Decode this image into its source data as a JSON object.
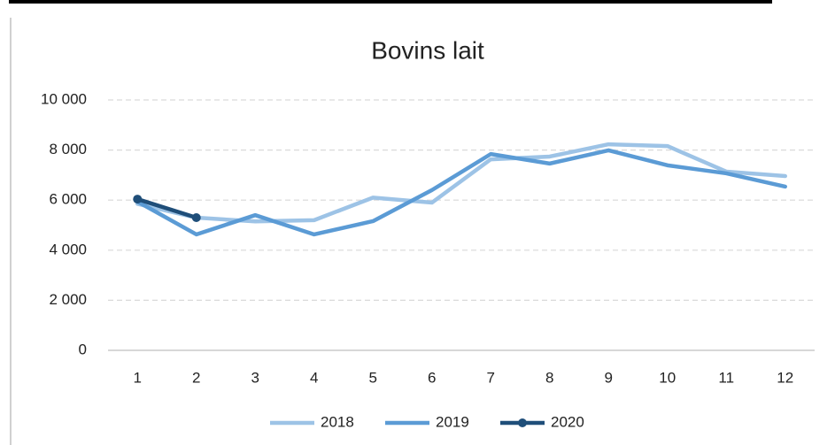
{
  "chart_data": {
    "type": "line",
    "title": "Bovins lait",
    "categories": [
      "1",
      "2",
      "3",
      "4",
      "5",
      "6",
      "7",
      "8",
      "9",
      "10",
      "11",
      "12"
    ],
    "series": [
      {
        "name": "2018",
        "color": "#9dc3e6",
        "values": [
          5850,
          5300,
          5150,
          5200,
          6100,
          5900,
          7630,
          7740,
          8230,
          8160,
          7140,
          6960
        ]
      },
      {
        "name": "2019",
        "color": "#5b9bd5",
        "values": [
          5940,
          4630,
          5400,
          4630,
          5160,
          6400,
          7840,
          7460,
          7990,
          7390,
          7070,
          6540
        ]
      },
      {
        "name": "2020",
        "color": "#1f4e79",
        "marker": true,
        "values": [
          6040,
          5300,
          null,
          null,
          null,
          null,
          null,
          null,
          null,
          null,
          null,
          null
        ]
      }
    ],
    "ylim": [
      0,
      10000
    ],
    "yticks": [
      0,
      {
        "value": 2000,
        "label": "2 000"
      },
      {
        "value": 4000,
        "label": "4 000"
      },
      {
        "value": 6000,
        "label": "6 000"
      },
      {
        "value": 8000,
        "label": "8 000"
      },
      {
        "value": 10000,
        "label": "10 000"
      }
    ],
    "grid": true,
    "legend": "bottom"
  }
}
